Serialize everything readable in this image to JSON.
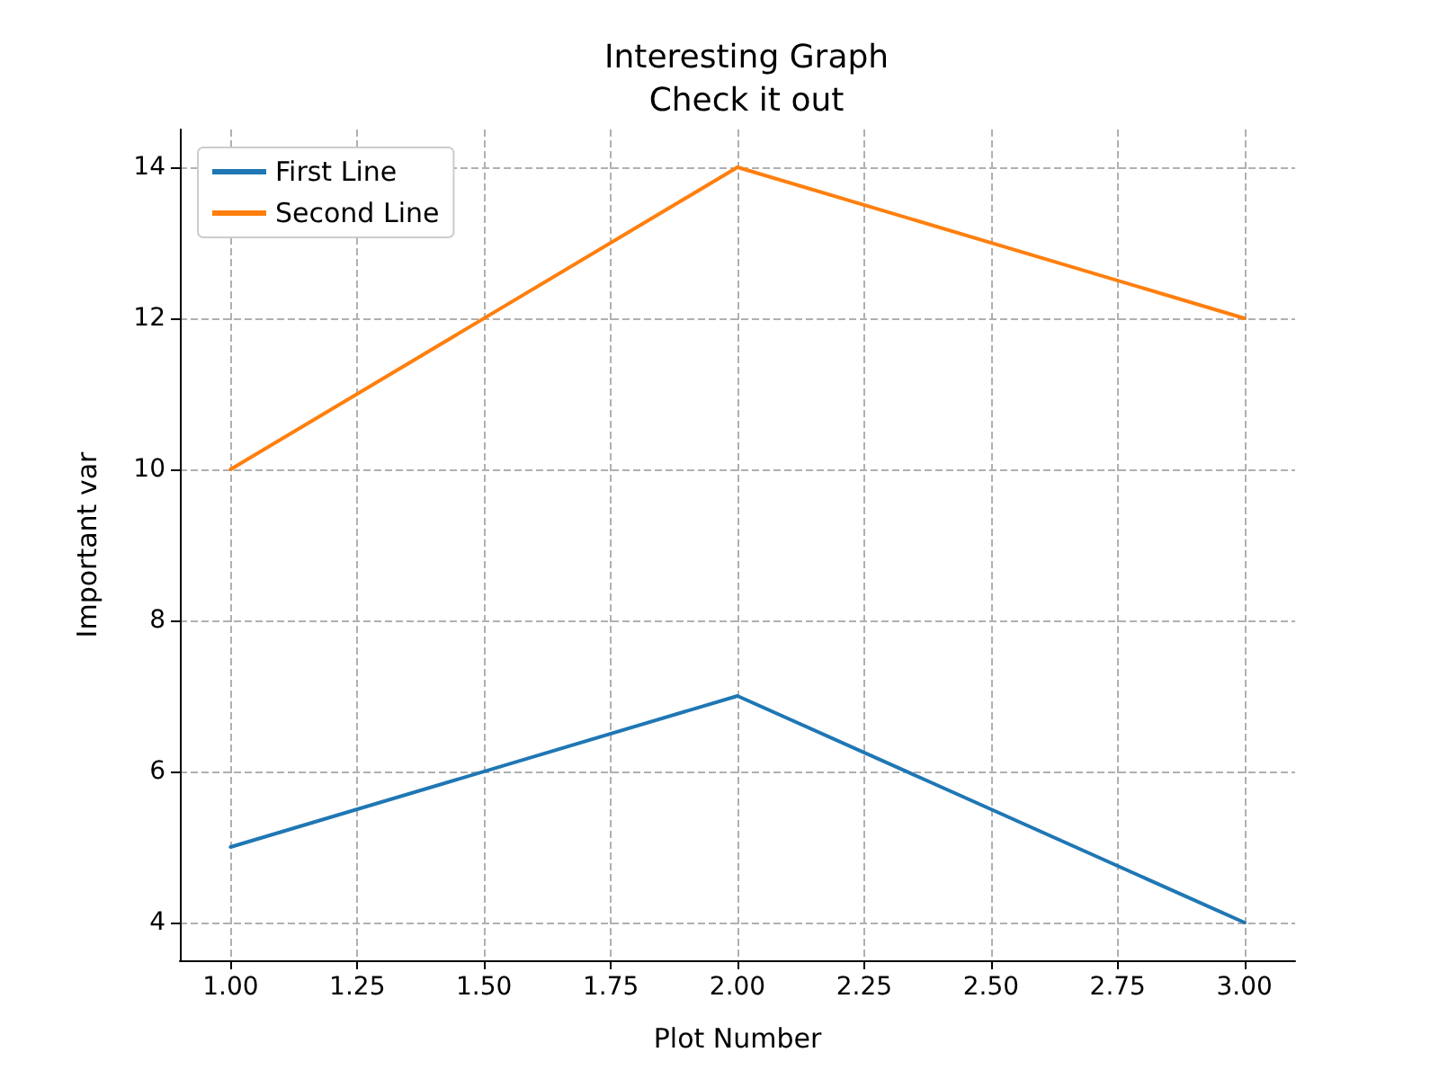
{
  "chart_data": {
    "type": "line",
    "title": "Interesting Graph",
    "subtitle": "Check it out",
    "xlabel": "Plot Number",
    "ylabel": "Important var",
    "x": [
      1,
      2,
      3
    ],
    "series": [
      {
        "name": "First Line",
        "color": "#1f77b4",
        "values": [
          5,
          7,
          4
        ]
      },
      {
        "name": "Second Line",
        "color": "#ff7f0e",
        "values": [
          10,
          14,
          12
        ]
      }
    ],
    "xlim": [
      0.9,
      3.1
    ],
    "ylim": [
      3.5,
      14.5
    ],
    "xticks": [
      {
        "value": 1,
        "label": "1.00"
      },
      {
        "value": 1.25,
        "label": "1.25"
      },
      {
        "value": 1.5,
        "label": "1.50"
      },
      {
        "value": 1.75,
        "label": "1.75"
      },
      {
        "value": 2,
        "label": "2.00"
      },
      {
        "value": 2.25,
        "label": "2.25"
      },
      {
        "value": 2.5,
        "label": "2.50"
      },
      {
        "value": 2.75,
        "label": "2.75"
      },
      {
        "value": 3,
        "label": "3.00"
      }
    ],
    "yticks": [
      4,
      6,
      8,
      10,
      12,
      14
    ],
    "grid": true,
    "legend": "top left",
    "marker": "none",
    "line_style": "solid"
  }
}
